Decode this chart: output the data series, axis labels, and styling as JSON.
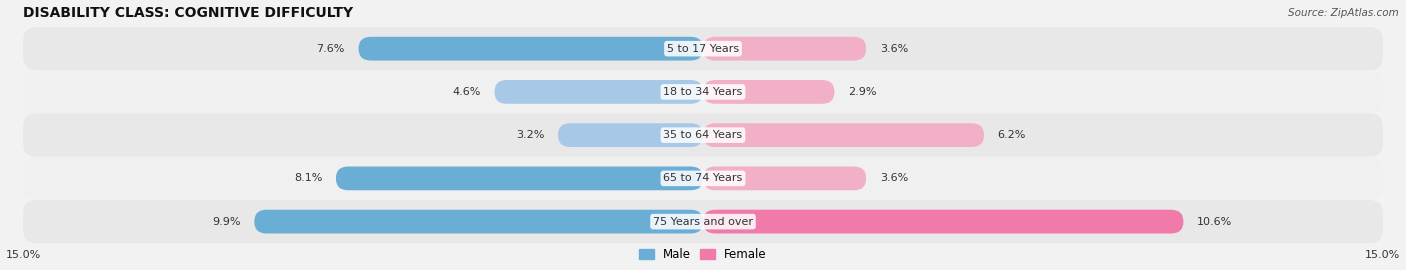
{
  "title": "DISABILITY CLASS: COGNITIVE DIFFICULTY",
  "source": "Source: ZipAtlas.com",
  "categories": [
    "5 to 17 Years",
    "18 to 34 Years",
    "35 to 64 Years",
    "65 to 74 Years",
    "75 Years and over"
  ],
  "male_values": [
    7.6,
    4.6,
    3.2,
    8.1,
    9.9
  ],
  "female_values": [
    3.6,
    2.9,
    6.2,
    3.6,
    10.6
  ],
  "male_color_light": "#a8c8e8",
  "male_color_dark": "#6aaed6",
  "female_color_light": "#f2afc8",
  "female_color_dark": "#f07aaa",
  "highlight_male": [
    0,
    3,
    4
  ],
  "highlight_female": [
    4
  ],
  "xlim": 15.0,
  "bg_color": "#f2f2f2",
  "row_color_even": "#e8e8e8",
  "row_color_odd": "#f0f0f0",
  "title_fontsize": 10,
  "label_fontsize": 8,
  "tick_fontsize": 8,
  "legend_fontsize": 8.5,
  "cat_label_fontsize": 8
}
